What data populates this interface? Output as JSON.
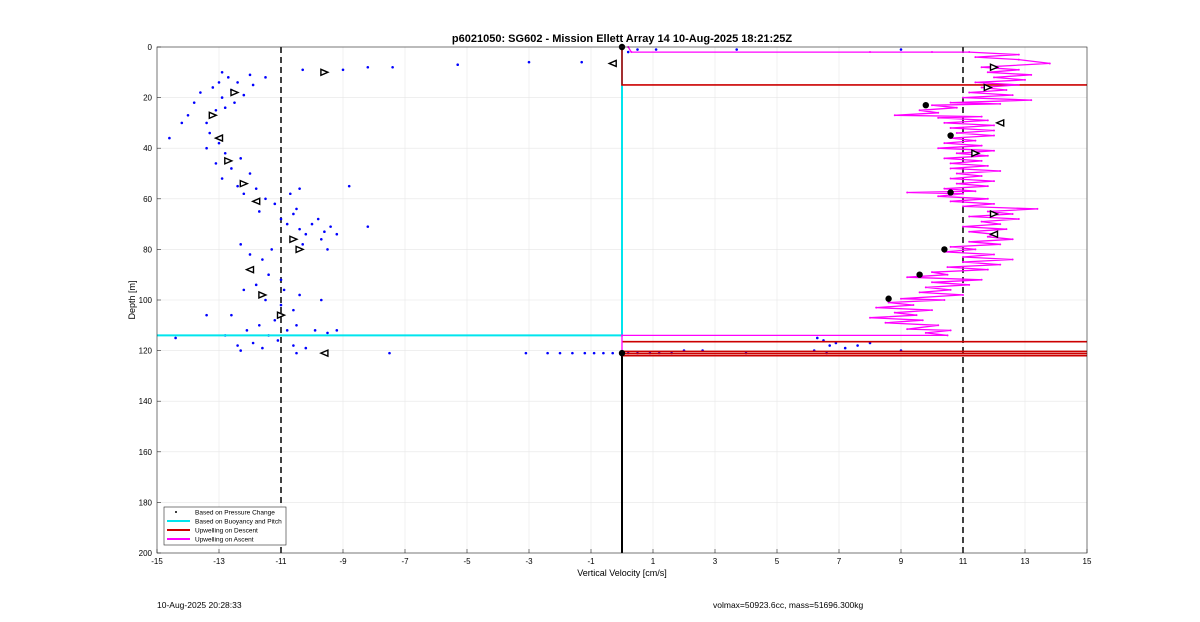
{
  "chart_data": {
    "type": "scatter",
    "title": "p6021050: SG602 - Mission Ellett Array 14 10-Aug-2025 18:21:25Z",
    "xlabel": "Vertical Velocity [cm/s]",
    "ylabel": "Depth [m]",
    "xlim": [
      -15,
      15
    ],
    "ylim": [
      200,
      0
    ],
    "y_reversed": true,
    "grid": true,
    "xticks": [
      -15,
      -13,
      -11,
      -9,
      -7,
      -5,
      -3,
      -1,
      1,
      3,
      5,
      7,
      9,
      11,
      13,
      15
    ],
    "yticks": [
      0,
      20,
      40,
      60,
      80,
      100,
      120,
      140,
      160,
      180,
      200
    ],
    "legend_position": "bottom-left",
    "legend": [
      "Based on Pressure Change",
      "Based on Buoyancy and Pitch",
      "Upwelling on Descent",
      "Upwelling on Ascent"
    ],
    "colors": {
      "pressure": "#0000ff",
      "buoyancy": "#00e5ee",
      "descent": "#cc0000",
      "ascent": "#ff00ff",
      "reference": "#000000"
    },
    "reference_lines": {
      "dashed_x": [
        -11,
        11
      ],
      "solid_x_zero_start_depth": 121
    },
    "series": [
      {
        "name": "Based on Pressure Change",
        "style": "dot",
        "points": [
          [
            -14.6,
            36
          ],
          [
            -14.2,
            30
          ],
          [
            -14.0,
            27
          ],
          [
            -13.8,
            22
          ],
          [
            -13.6,
            18
          ],
          [
            -13.4,
            30
          ],
          [
            -13.2,
            16
          ],
          [
            -13.1,
            25
          ],
          [
            -13.0,
            14
          ],
          [
            -12.9,
            20
          ],
          [
            -12.8,
            24
          ],
          [
            -12.7,
            12
          ],
          [
            -12.6,
            17
          ],
          [
            -12.5,
            22
          ],
          [
            -12.4,
            14
          ],
          [
            -12.2,
            19
          ],
          [
            -12.0,
            11
          ],
          [
            -13.3,
            34
          ],
          [
            -13.0,
            38
          ],
          [
            -12.8,
            42
          ],
          [
            -13.4,
            40
          ],
          [
            -13.1,
            46
          ],
          [
            -12.6,
            48
          ],
          [
            -12.3,
            44
          ],
          [
            -12.9,
            52
          ],
          [
            -12.4,
            55
          ],
          [
            -12.0,
            50
          ],
          [
            -12.2,
            58
          ],
          [
            -11.8,
            56
          ],
          [
            -11.5,
            60
          ],
          [
            -11.2,
            62
          ],
          [
            -11.7,
            65
          ],
          [
            -11.0,
            68
          ],
          [
            -10.8,
            70
          ],
          [
            -10.6,
            66
          ],
          [
            -10.4,
            72
          ],
          [
            -10.2,
            74
          ],
          [
            -10.0,
            70
          ],
          [
            -9.8,
            68
          ],
          [
            -9.6,
            73
          ],
          [
            -9.4,
            71
          ],
          [
            -9.7,
            76
          ],
          [
            -10.3,
            78
          ],
          [
            -10.5,
            64
          ],
          [
            -10.7,
            58
          ],
          [
            -10.4,
            56
          ],
          [
            -8.8,
            55
          ],
          [
            -8.2,
            71
          ],
          [
            -9.2,
            74
          ],
          [
            -9.5,
            80
          ],
          [
            -11.3,
            80
          ],
          [
            -11.6,
            84
          ],
          [
            -12.0,
            82
          ],
          [
            -12.3,
            78
          ],
          [
            -11.4,
            90
          ],
          [
            -11.0,
            92
          ],
          [
            -10.9,
            96
          ],
          [
            -11.8,
            94
          ],
          [
            -12.2,
            96
          ],
          [
            -11.5,
            100
          ],
          [
            -11.0,
            102
          ],
          [
            -10.6,
            104
          ],
          [
            -10.4,
            98
          ],
          [
            -11.2,
            108
          ],
          [
            -11.7,
            110
          ],
          [
            -12.1,
            112
          ],
          [
            -11.4,
            114
          ],
          [
            -10.8,
            112
          ],
          [
            -10.5,
            110
          ],
          [
            -12.6,
            106
          ],
          [
            -13.4,
            106
          ],
          [
            -14.4,
            115
          ],
          [
            -12.4,
            118
          ],
          [
            -11.9,
            117
          ],
          [
            -11.1,
            116
          ],
          [
            -10.6,
            118
          ],
          [
            -10.2,
            119
          ],
          [
            -9.9,
            112
          ],
          [
            -9.5,
            113
          ],
          [
            -9.2,
            112
          ],
          [
            -9.7,
            100
          ],
          [
            -12.8,
            114
          ],
          [
            -12.3,
            120
          ],
          [
            -11.6,
            119
          ],
          [
            -10.5,
            121
          ],
          [
            -12.9,
            10
          ],
          [
            -11.5,
            12
          ],
          [
            -10.3,
            9
          ],
          [
            -11.9,
            15
          ],
          [
            -9.0,
            9
          ],
          [
            -8.2,
            8
          ],
          [
            -7.4,
            8
          ],
          [
            -5.3,
            7
          ],
          [
            -3.0,
            6
          ],
          [
            -1.3,
            6
          ],
          [
            -7.5,
            121
          ],
          [
            -3.1,
            121
          ],
          [
            -2.4,
            121
          ],
          [
            -2.0,
            121
          ],
          [
            -1.6,
            121
          ],
          [
            -1.2,
            121
          ],
          [
            -0.9,
            121
          ],
          [
            -0.6,
            121
          ],
          [
            -0.3,
            121
          ],
          [
            0.2,
            121
          ],
          [
            0.5,
            121
          ],
          [
            0.9,
            121
          ],
          [
            1.2,
            121
          ],
          [
            1.6,
            121
          ],
          [
            2.0,
            120
          ],
          [
            2.6,
            120
          ],
          [
            4.0,
            121
          ],
          [
            6.3,
            115
          ],
          [
            6.5,
            116
          ],
          [
            6.7,
            118
          ],
          [
            6.9,
            117
          ],
          [
            7.2,
            119
          ],
          [
            7.6,
            118
          ],
          [
            8.0,
            117
          ],
          [
            6.2,
            120
          ],
          [
            6.6,
            121
          ],
          [
            9.0,
            120
          ],
          [
            3.7,
            1
          ],
          [
            9.0,
            1
          ],
          [
            0.5,
            1
          ],
          [
            1.1,
            1
          ],
          [
            0.2,
            2
          ]
        ]
      },
      {
        "name": "Based on Buoyancy and Pitch",
        "style": "line",
        "points": [
          [
            -15,
            114
          ],
          [
            0,
            114
          ],
          [
            0,
            0
          ]
        ]
      },
      {
        "name": "Upwelling on Descent",
        "style": "line",
        "points": [
          [
            0,
            1
          ],
          [
            0,
            15
          ],
          [
            15,
            15
          ]
        ],
        "extra_lines": [
          [
            [
              0,
              116.5
            ],
            [
              15,
              116.5
            ]
          ],
          [
            [
              0,
              120.3
            ],
            [
              15,
              120.3
            ]
          ],
          [
            [
              0,
              121.2
            ],
            [
              15,
              121.2
            ]
          ],
          [
            [
              0,
              122.0
            ],
            [
              15,
              122.0
            ]
          ]
        ]
      },
      {
        "name": "Upwelling on Ascent",
        "style": "line",
        "points": [
          [
            0,
            121
          ],
          [
            0,
            114
          ],
          [
            10.5,
            114
          ],
          [
            9.8,
            113
          ],
          [
            10.6,
            112
          ],
          [
            9.2,
            111.5
          ],
          [
            10.2,
            110
          ],
          [
            8.5,
            109
          ],
          [
            9.7,
            108
          ],
          [
            8.0,
            107
          ],
          [
            9.5,
            106
          ],
          [
            8.8,
            105
          ],
          [
            10.0,
            104
          ],
          [
            8.2,
            103
          ],
          [
            9.4,
            102
          ],
          [
            8.6,
            101
          ],
          [
            10.4,
            100
          ],
          [
            9.0,
            99.5
          ],
          [
            11.0,
            98
          ],
          [
            9.6,
            97
          ],
          [
            10.6,
            96
          ],
          [
            9.8,
            95
          ],
          [
            11.2,
            94
          ],
          [
            10.0,
            93
          ],
          [
            11.6,
            92
          ],
          [
            9.2,
            91
          ],
          [
            10.5,
            90
          ],
          [
            10.0,
            89
          ],
          [
            11.8,
            88
          ],
          [
            10.5,
            87
          ],
          [
            12.2,
            86
          ],
          [
            11.0,
            85
          ],
          [
            12.6,
            84
          ],
          [
            11.0,
            83
          ],
          [
            12.0,
            82
          ],
          [
            10.4,
            81
          ],
          [
            11.4,
            80
          ],
          [
            10.6,
            79
          ],
          [
            12.2,
            78
          ],
          [
            11.2,
            77
          ],
          [
            12.6,
            76
          ],
          [
            11.8,
            75
          ],
          [
            12.0,
            74
          ],
          [
            11.2,
            73
          ],
          [
            12.4,
            72
          ],
          [
            11.0,
            71
          ],
          [
            12.2,
            70
          ],
          [
            11.6,
            69
          ],
          [
            12.8,
            68
          ],
          [
            11.2,
            67
          ],
          [
            12.6,
            66
          ],
          [
            11.8,
            65
          ],
          [
            13.4,
            64
          ],
          [
            11.0,
            63
          ],
          [
            12.0,
            62
          ],
          [
            10.6,
            61
          ],
          [
            11.8,
            60
          ],
          [
            10.2,
            59
          ],
          [
            11.0,
            58
          ],
          [
            9.2,
            57.5
          ],
          [
            11.4,
            57
          ],
          [
            10.4,
            56
          ],
          [
            11.8,
            55
          ],
          [
            10.8,
            54
          ],
          [
            12.0,
            53
          ],
          [
            10.6,
            52
          ],
          [
            11.6,
            51
          ],
          [
            10.8,
            50
          ],
          [
            12.2,
            49
          ],
          [
            10.6,
            48
          ],
          [
            11.8,
            47
          ],
          [
            10.6,
            46
          ],
          [
            11.6,
            45
          ],
          [
            10.4,
            44
          ],
          [
            11.8,
            43
          ],
          [
            10.8,
            42
          ],
          [
            12.0,
            41
          ],
          [
            10.2,
            40
          ],
          [
            11.6,
            39
          ],
          [
            10.4,
            38
          ],
          [
            11.4,
            37
          ],
          [
            10.6,
            36
          ],
          [
            12.0,
            35
          ],
          [
            10.8,
            34
          ],
          [
            12.0,
            33
          ],
          [
            10.6,
            32
          ],
          [
            12.0,
            31
          ],
          [
            10.4,
            30
          ],
          [
            11.8,
            29
          ],
          [
            10.2,
            28
          ],
          [
            11.6,
            27.5
          ],
          [
            8.8,
            27
          ],
          [
            10.2,
            26
          ],
          [
            9.6,
            25
          ],
          [
            10.8,
            24
          ],
          [
            10.0,
            23
          ],
          [
            12.2,
            22.5
          ],
          [
            10.6,
            22
          ],
          [
            13.2,
            21
          ],
          [
            11.0,
            20
          ],
          [
            12.6,
            19
          ],
          [
            11.2,
            18
          ],
          [
            12.4,
            17
          ],
          [
            11.6,
            16
          ],
          [
            12.8,
            15
          ],
          [
            11.4,
            14
          ],
          [
            13.0,
            13
          ],
          [
            12.0,
            12
          ],
          [
            13.2,
            11
          ],
          [
            11.8,
            10
          ],
          [
            12.8,
            9
          ],
          [
            11.6,
            8
          ],
          [
            13.8,
            6.5
          ],
          [
            12.8,
            5
          ],
          [
            11.4,
            4
          ],
          [
            12.8,
            3
          ],
          [
            11.2,
            2
          ],
          [
            10.0,
            2
          ],
          [
            8.0,
            2
          ],
          [
            0.3,
            2
          ],
          [
            0.2,
            0
          ]
        ]
      },
      {
        "name": "",
        "style": "triangle-marker",
        "points": [
          [
            -9.6,
            10
          ],
          [
            -0.3,
            6.5
          ],
          [
            -12.5,
            18
          ],
          [
            -13.2,
            27
          ],
          [
            -13.0,
            36
          ],
          [
            -12.7,
            45
          ],
          [
            -12.2,
            54
          ],
          [
            -11.8,
            61
          ],
          [
            -10.6,
            76
          ],
          [
            -10.4,
            80
          ],
          [
            -12.0,
            88
          ],
          [
            -11.6,
            98
          ],
          [
            -11.0,
            106
          ],
          [
            -9.6,
            121
          ],
          [
            12.0,
            8
          ],
          [
            11.8,
            16
          ],
          [
            12.2,
            30
          ],
          [
            11.4,
            42
          ],
          [
            12.0,
            66
          ],
          [
            12.0,
            74
          ]
        ]
      },
      {
        "name": "",
        "style": "filled-marker",
        "points": [
          [
            0,
            0
          ],
          [
            0,
            121
          ],
          [
            9.8,
            23
          ],
          [
            10.6,
            35
          ],
          [
            10.6,
            57.5
          ],
          [
            10.4,
            80
          ],
          [
            9.6,
            90
          ],
          [
            8.6,
            99.5
          ]
        ]
      }
    ]
  },
  "footer": {
    "left": "10-Aug-2025 20:28:33",
    "right": "volmax=50923.6cc, mass=51696.300kg"
  }
}
